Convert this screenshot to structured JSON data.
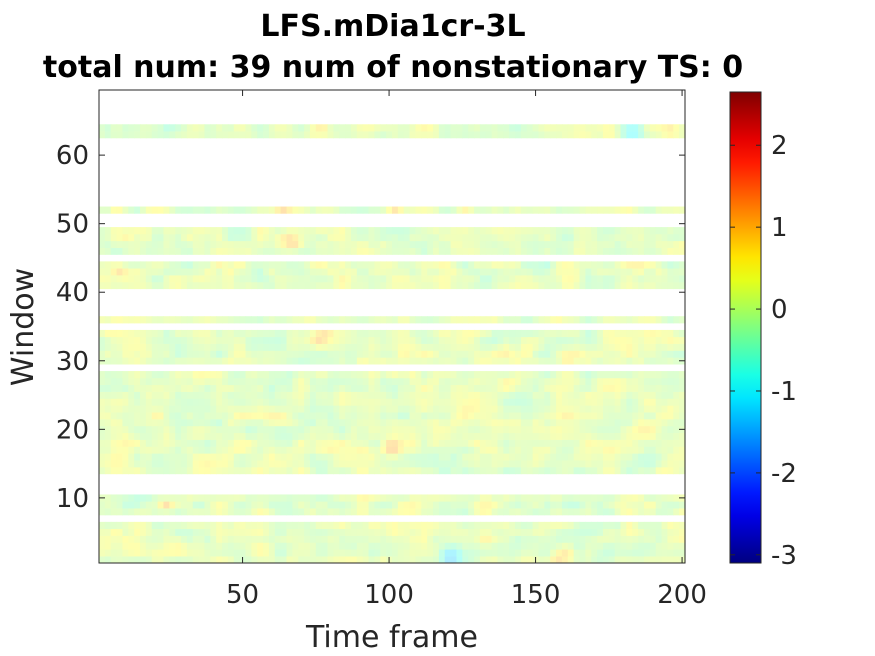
{
  "chart_data": {
    "type": "heatmap",
    "title": "LFS.mDia1cr-3L",
    "subtitle": "total num: 39 num of nonstationary TS: 0",
    "xlabel": "Time frame",
    "ylabel": "Window",
    "xlim": [
      1,
      201
    ],
    "ylim": [
      0.5,
      69.5
    ],
    "x_ticks": [
      50,
      100,
      150,
      200
    ],
    "y_ticks": [
      10,
      20,
      30,
      40,
      50,
      60
    ],
    "colormap": "jet",
    "color_range": [
      -3.1,
      2.65
    ],
    "colorbar_ticks": [
      2,
      1,
      0,
      -1,
      -2,
      -3
    ],
    "colorbar_tick_labels": [
      "2",
      "1",
      "0",
      "-1",
      "-2",
      "-3"
    ],
    "background_color": "#ffffff",
    "total_num": 39,
    "num_nonstationary": 0,
    "windows_with_data": [
      1,
      2,
      3,
      4,
      5,
      6,
      8,
      9,
      10,
      14,
      15,
      16,
      17,
      18,
      19,
      20,
      21,
      22,
      23,
      24,
      25,
      26,
      27,
      28,
      30,
      31,
      32,
      33,
      34,
      36,
      41,
      42,
      43,
      44,
      46,
      47,
      48,
      49,
      52,
      63,
      64
    ],
    "blank_windows": [
      7,
      11,
      12,
      13,
      29,
      35,
      37,
      38,
      39,
      40,
      45,
      50,
      51,
      53,
      54,
      55,
      56,
      57,
      58,
      59,
      60,
      61,
      62,
      65,
      66,
      67,
      68,
      69
    ],
    "value_typical_range": [
      -0.6,
      0.8
    ],
    "notable_cells": [
      {
        "window": 1,
        "time": 121,
        "value": -1.4
      },
      {
        "window": 2,
        "time": 121,
        "value": -1.2
      },
      {
        "window": 1,
        "time": 158,
        "value": 0.9
      },
      {
        "window": 2,
        "time": 160,
        "value": 0.8
      },
      {
        "window": 17,
        "time": 101,
        "value": 1.1
      },
      {
        "window": 18,
        "time": 101,
        "value": 1.0
      },
      {
        "window": 33,
        "time": 76,
        "value": 1.0
      },
      {
        "window": 34,
        "time": 78,
        "value": 0.9
      },
      {
        "window": 47,
        "time": 67,
        "value": 1.0
      },
      {
        "window": 48,
        "time": 66,
        "value": 0.9
      },
      {
        "window": 52,
        "time": 64,
        "value": 1.0
      },
      {
        "window": 52,
        "time": 102,
        "value": 0.9
      },
      {
        "window": 63,
        "time": 183,
        "value": -1.0
      },
      {
        "window": 64,
        "time": 183,
        "value": -0.9
      },
      {
        "window": 9,
        "time": 24,
        "value": 1.0
      },
      {
        "window": 43,
        "time": 8,
        "value": 0.9
      }
    ]
  }
}
